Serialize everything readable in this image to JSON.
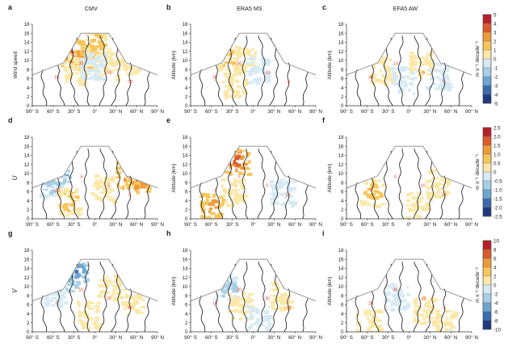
{
  "figure": {
    "panels": [
      {
        "letter": "a",
        "title": "CMV",
        "ylabel": "Wind speed",
        "row": 0,
        "col": 0
      },
      {
        "letter": "b",
        "title": "ERA5 MS",
        "ylabel": "Altitude (km)",
        "row": 0,
        "col": 1
      },
      {
        "letter": "c",
        "title": "EFA5 AW",
        "ylabel": "Altitude (km)",
        "row": 0,
        "col": 2
      },
      {
        "letter": "d",
        "title": "",
        "ylabel": "U",
        "row": 1,
        "col": 0
      },
      {
        "letter": "e",
        "title": "",
        "ylabel": "Altitude (km)",
        "row": 1,
        "col": 1
      },
      {
        "letter": "f",
        "title": "",
        "ylabel": "Altitude (km)",
        "row": 1,
        "col": 2
      },
      {
        "letter": "g",
        "title": "",
        "ylabel": "V",
        "row": 2,
        "col": 0
      },
      {
        "letter": "h",
        "title": "",
        "ylabel": "Altitude (km)",
        "row": 2,
        "col": 1
      },
      {
        "letter": "i",
        "title": "",
        "ylabel": "Altitude (km)",
        "row": 2,
        "col": 2
      }
    ],
    "colorbars": [
      {
        "row": 0,
        "label": "m s⁻¹ decade⁻¹",
        "ticks": [
          "5",
          "4",
          "3",
          "2",
          "1",
          "0",
          "-1",
          "-2",
          "-3",
          "-4",
          "-5"
        ]
      },
      {
        "row": 1,
        "label": "m s⁻¹ decade⁻¹",
        "ticks": [
          "2.5",
          "2.0",
          "1.5",
          "1.0",
          "0.5",
          "0",
          "-0.5",
          "-1.0",
          "-1.5",
          "-2.0",
          "-2.5"
        ]
      },
      {
        "row": 2,
        "label": "m s⁻¹ decade⁻¹",
        "ticks": [
          "10",
          "8",
          "6",
          "4",
          "2",
          "0",
          "-2",
          "-4",
          "-6",
          "-8",
          "-10"
        ]
      }
    ],
    "colors": {
      "warm": [
        "#fbe8a8",
        "#f7c65a",
        "#ef9a3a",
        "#dd5a2b",
        "#b8202a"
      ],
      "cool": [
        "#d6eaf5",
        "#a7cfe6",
        "#6ea6d2",
        "#3a6bb0",
        "#203a80"
      ],
      "tropopause": "#999999",
      "contour": "#111111",
      "contour_label": "#e84030"
    }
  },
  "chart_data": {
    "type": "heatmap",
    "x_label": "",
    "y_label": "Altitude (km)",
    "x_ticks": [
      "90° S",
      "60° S",
      "30° S",
      "0°",
      "30° N",
      "60° N",
      "90° N"
    ],
    "y_ticks": [
      "0",
      "2",
      "4",
      "6",
      "8",
      "10",
      "12",
      "14",
      "16",
      "18"
    ],
    "xlim": [
      -90,
      90
    ],
    "ylim": [
      0,
      18
    ],
    "contour_labels": [
      "10",
      "20",
      "30",
      "-10",
      "-5",
      "5",
      "0"
    ],
    "panels": [
      {
        "id": "a",
        "variable": "Wind speed",
        "source": "CMV",
        "colorbar_range": [
          -5,
          5
        ],
        "features": [
          {
            "lat": -35,
            "alt": 12,
            "trend": 4
          },
          {
            "lat": -20,
            "alt": 11,
            "trend": 3
          },
          {
            "lat": 0,
            "alt": 14,
            "trend": 2
          },
          {
            "lat": -30,
            "alt": 8,
            "trend": 1
          },
          {
            "lat": 15,
            "alt": 9,
            "trend": 1
          },
          {
            "lat": -5,
            "alt": 9,
            "trend": -1
          },
          {
            "lat": 45,
            "alt": 10,
            "trend": 1
          }
        ]
      },
      {
        "id": "b",
        "variable": "Wind speed",
        "source": "ERA5 MS",
        "colorbar_range": [
          -5,
          5
        ],
        "features": [
          {
            "lat": -40,
            "alt": 11,
            "trend": 2
          },
          {
            "lat": -15,
            "alt": 10,
            "trend": 1
          },
          {
            "lat": 5,
            "alt": 8,
            "trend": -1
          },
          {
            "lat": -30,
            "alt": 5,
            "trend": 1
          }
        ]
      },
      {
        "id": "c",
        "variable": "Wind speed",
        "source": "EFA5 AW",
        "colorbar_range": [
          -5,
          5
        ],
        "features": [
          {
            "lat": -40,
            "alt": 8,
            "trend": 1
          },
          {
            "lat": 15,
            "alt": 9,
            "trend": 1
          },
          {
            "lat": -10,
            "alt": 6,
            "trend": -1
          },
          {
            "lat": 40,
            "alt": 7,
            "trend": -1
          }
        ]
      },
      {
        "id": "d",
        "variable": "U",
        "source": "CMV",
        "colorbar_range": [
          -2.5,
          2.5
        ],
        "features": [
          {
            "lat": -55,
            "alt": 11,
            "trend": -2
          },
          {
            "lat": -65,
            "alt": 8,
            "trend": -1
          },
          {
            "lat": 45,
            "alt": 10,
            "trend": 1.5
          },
          {
            "lat": 60,
            "alt": 9,
            "trend": 2
          },
          {
            "lat": -40,
            "alt": 4,
            "trend": 1
          },
          {
            "lat": 10,
            "alt": 7,
            "trend": 0.5
          }
        ]
      },
      {
        "id": "e",
        "variable": "U",
        "source": "ERA5 MS",
        "colorbar_range": [
          -2.5,
          2.5
        ],
        "features": [
          {
            "lat": -25,
            "alt": 13,
            "trend": 2
          },
          {
            "lat": -60,
            "alt": 3,
            "trend": 1.5
          },
          {
            "lat": -30,
            "alt": 6,
            "trend": 0.5
          },
          {
            "lat": 40,
            "alt": 6,
            "trend": -0.5
          }
        ]
      },
      {
        "id": "f",
        "variable": "U",
        "source": "EFA5 AW",
        "colorbar_range": [
          -2.5,
          2.5
        ],
        "features": [
          {
            "lat": -55,
            "alt": 6,
            "trend": 1
          },
          {
            "lat": 10,
            "alt": 3,
            "trend": 0.5
          },
          {
            "lat": 40,
            "alt": 8,
            "trend": 0.5
          }
        ]
      },
      {
        "id": "g",
        "variable": "V",
        "source": "CMV",
        "colorbar_range": [
          -10,
          10
        ],
        "features": [
          {
            "lat": -45,
            "alt": 12,
            "trend": -6
          },
          {
            "lat": -30,
            "alt": 14,
            "trend": -8
          },
          {
            "lat": -60,
            "alt": 9,
            "trend": -2
          },
          {
            "lat": 20,
            "alt": 10,
            "trend": 2
          },
          {
            "lat": 50,
            "alt": 7,
            "trend": 2
          },
          {
            "lat": -10,
            "alt": 4,
            "trend": 2
          }
        ]
      },
      {
        "id": "h",
        "variable": "V",
        "source": "ERA5 MS",
        "colorbar_range": [
          -10,
          10
        ],
        "features": [
          {
            "lat": -40,
            "alt": 10,
            "trend": -4
          },
          {
            "lat": -20,
            "alt": 6,
            "trend": 2
          },
          {
            "lat": 40,
            "alt": 8,
            "trend": 2
          },
          {
            "lat": 5,
            "alt": 3,
            "trend": -2
          }
        ]
      },
      {
        "id": "i",
        "variable": "V",
        "source": "EFA5 AW",
        "colorbar_range": [
          -10,
          10
        ],
        "features": [
          {
            "lat": -20,
            "alt": 8,
            "trend": -2
          },
          {
            "lat": 20,
            "alt": 5,
            "trend": 2
          },
          {
            "lat": -60,
            "alt": 2,
            "trend": 2
          },
          {
            "lat": 50,
            "alt": 2,
            "trend": 2
          }
        ]
      }
    ]
  }
}
